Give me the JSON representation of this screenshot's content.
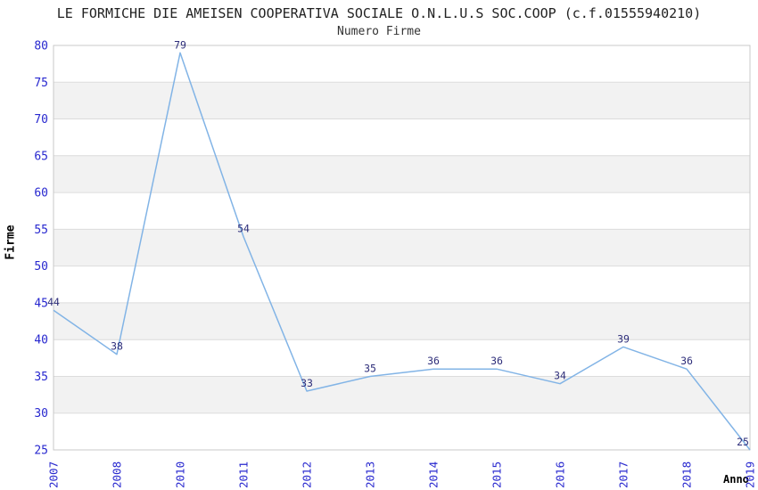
{
  "header": {
    "title": "LE FORMICHE DIE AMEISEN COOPERATIVA SOCIALE O.N.L.U.S SOC.COOP (c.f.01555940210)",
    "subtitle": "Numero Firme"
  },
  "chart_data": {
    "type": "line",
    "title": "LE FORMICHE DIE AMEISEN COOPERATIVA SOCIALE O.N.L.U.S SOC.COOP (c.f.01555940210)",
    "subtitle": "Numero Firme",
    "xlabel": "Anno",
    "ylabel": "Firme",
    "categories": [
      "2007",
      "2008",
      "2010",
      "2011",
      "2012",
      "2013",
      "2014",
      "2015",
      "2016",
      "2017",
      "2018",
      "2019"
    ],
    "values": [
      44,
      38,
      79,
      54,
      33,
      35,
      36,
      36,
      34,
      39,
      36,
      25
    ],
    "ylim": [
      25,
      80
    ],
    "ytick_step": 5,
    "grid": true,
    "banded_background": true,
    "legend": "none",
    "point_labels_visible": true,
    "colors": {
      "line": "#82b4e6",
      "tick_label": "#2828cf",
      "value_label": "#2e2e7a",
      "band": "#f2f2f2",
      "gridline": "#dcdcdc",
      "border": "#c8c8c8",
      "title": "#222222",
      "background": "#ffffff"
    }
  }
}
